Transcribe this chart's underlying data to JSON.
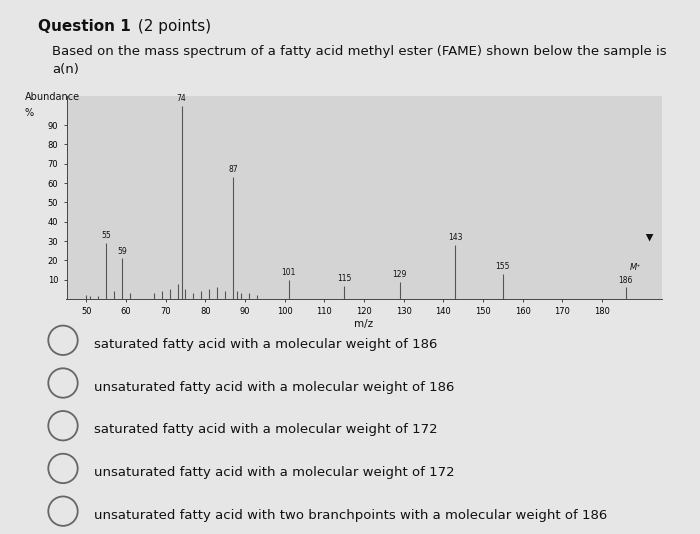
{
  "title_bold": "Question 1",
  "title_normal": " (2 points)",
  "subtitle": "Based on the mass spectrum of a fatty acid methyl ester (FAME) shown below the sample is\na(n)",
  "spectrum": {
    "peaks": [
      {
        "mz": 50,
        "abundance": 2
      },
      {
        "mz": 51,
        "abundance": 1.5
      },
      {
        "mz": 53,
        "abundance": 1.5
      },
      {
        "mz": 55,
        "abundance": 29
      },
      {
        "mz": 57,
        "abundance": 4
      },
      {
        "mz": 59,
        "abundance": 21
      },
      {
        "mz": 61,
        "abundance": 3
      },
      {
        "mz": 67,
        "abundance": 3
      },
      {
        "mz": 69,
        "abundance": 4
      },
      {
        "mz": 71,
        "abundance": 5
      },
      {
        "mz": 73,
        "abundance": 8
      },
      {
        "mz": 74,
        "abundance": 100
      },
      {
        "mz": 75,
        "abundance": 5
      },
      {
        "mz": 77,
        "abundance": 3
      },
      {
        "mz": 79,
        "abundance": 4
      },
      {
        "mz": 81,
        "abundance": 5
      },
      {
        "mz": 83,
        "abundance": 6
      },
      {
        "mz": 85,
        "abundance": 4
      },
      {
        "mz": 87,
        "abundance": 63
      },
      {
        "mz": 88,
        "abundance": 4
      },
      {
        "mz": 89,
        "abundance": 3
      },
      {
        "mz": 91,
        "abundance": 3
      },
      {
        "mz": 93,
        "abundance": 2
      },
      {
        "mz": 101,
        "abundance": 10
      },
      {
        "mz": 115,
        "abundance": 7
      },
      {
        "mz": 129,
        "abundance": 9
      },
      {
        "mz": 143,
        "abundance": 28
      },
      {
        "mz": 155,
        "abundance": 13
      },
      {
        "mz": 186,
        "abundance": 6
      }
    ],
    "labeled_peaks": [
      {
        "mz": 55,
        "abundance": 29,
        "label": "55"
      },
      {
        "mz": 59,
        "abundance": 21,
        "label": "59"
      },
      {
        "mz": 74,
        "abundance": 100,
        "label": "74"
      },
      {
        "mz": 87,
        "abundance": 63,
        "label": "87"
      },
      {
        "mz": 101,
        "abundance": 10,
        "label": "101"
      },
      {
        "mz": 115,
        "abundance": 7,
        "label": "115"
      },
      {
        "mz": 129,
        "abundance": 9,
        "label": "129"
      },
      {
        "mz": 143,
        "abundance": 28,
        "label": "143"
      },
      {
        "mz": 155,
        "abundance": 13,
        "label": "155"
      },
      {
        "mz": 186,
        "abundance": 6,
        "label": "186"
      }
    ],
    "xlabel": "m/z",
    "ylabel_line1": "Abundance",
    "ylabel_line2": "%",
    "xlim": [
      45,
      195
    ],
    "ylim": [
      0,
      105
    ],
    "xticks": [
      50,
      60,
      70,
      80,
      90,
      100,
      110,
      120,
      130,
      140,
      150,
      160,
      170,
      180
    ],
    "yticks": [
      10,
      20,
      30,
      40,
      50,
      60,
      70,
      80,
      90
    ]
  },
  "choices": [
    "saturated fatty acid with a molecular weight of 186",
    "unsaturated fatty acid with a molecular weight of 186",
    "saturated fatty acid with a molecular weight of 172",
    "unsaturated fatty acid with a molecular weight of 172",
    "unsaturated fatty acid with two branchpoints with a molecular weight of 186"
  ],
  "bg_color": "#e6e6e6",
  "plot_bg_color": "#d4d4d4",
  "bar_color": "#555555",
  "axis_color": "#444444",
  "text_color": "#111111",
  "circle_color": "#666666"
}
